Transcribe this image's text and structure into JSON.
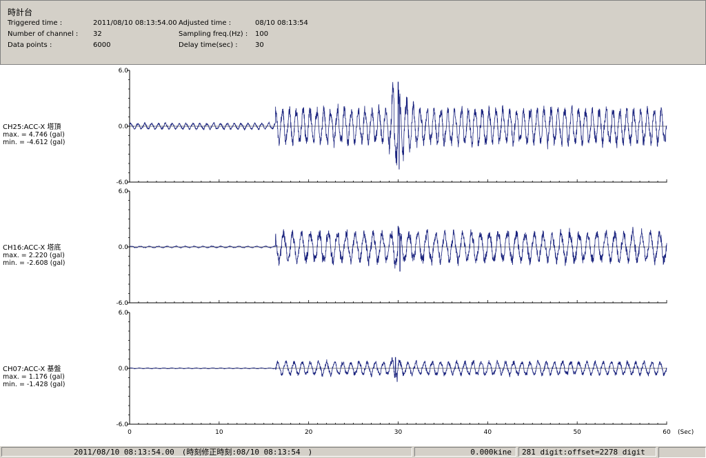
{
  "header": {
    "title": "時計台",
    "rows": [
      {
        "label": "Triggered time :",
        "value": "2011/08/10 08:13:54.00",
        "label2": "Adjusted time :",
        "value2": "08/10 08:13:54"
      },
      {
        "label": "Number of channel :",
        "value": "32",
        "label2": "Sampling freq.(Hz) :",
        "value2": "100"
      },
      {
        "label": "Data points :",
        "value": "6000",
        "label2": "Delay time(sec) :",
        "value2": "30"
      }
    ]
  },
  "colors": {
    "trace": "#1a237e",
    "axis": "#000000",
    "panel_bg": "#d4d0c8"
  },
  "chart_data": {
    "type": "line",
    "xlabel": "(Sec)",
    "xlim": [
      0,
      60
    ],
    "x_ticks": [
      0,
      10,
      20,
      30,
      40,
      50,
      60
    ],
    "ylim": [
      -6.0,
      6.0
    ],
    "y_tick_labels": [
      "6.0",
      "0.0",
      "-6.0"
    ],
    "series": [
      {
        "name": "CH25:ACC-X 塔頂",
        "max": "max. = 4.746 (gal)",
        "min": "min. = -4.612 (gal)",
        "peak": 4.746,
        "trough": -4.612
      },
      {
        "name": "CH16:ACC-X 塔底",
        "max": "max. = 2.220 (gal)",
        "min": "min. = -2.608 (gal)",
        "peak": 2.22,
        "trough": -2.608
      },
      {
        "name": "CH07:ACC-X 基盤",
        "max": "max. = 1.176 (gal)",
        "min": "min. = -1.428 (gal)",
        "peak": 1.176,
        "trough": -1.428
      }
    ]
  },
  "status": {
    "time": "2011/08/10 08:13:54.00　(時刻修正時刻:08/10 08:13:54　)",
    "velocity": "0.000kine",
    "digit": "281 digit:offset=2278 digit"
  }
}
